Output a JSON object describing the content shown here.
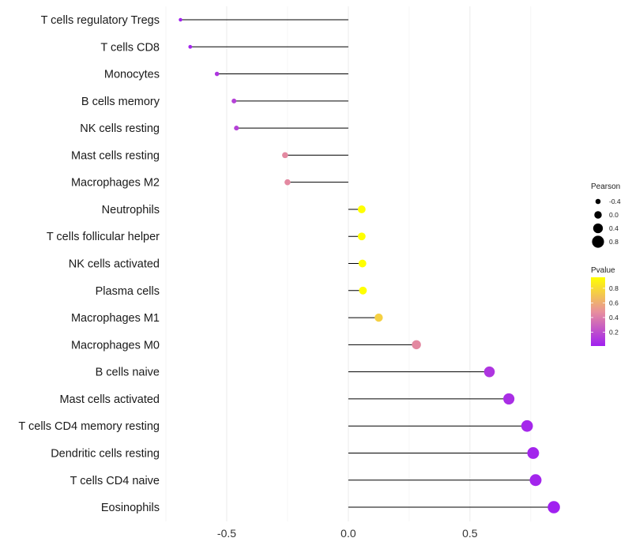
{
  "chart_data": {
    "type": "lollipop",
    "categories": [
      "T cells regulatory  Tregs",
      "T cells CD8",
      "Monocytes",
      "B cells memory",
      "NK cells resting",
      "Mast cells resting",
      "Macrophages M2",
      "Neutrophils",
      "T cells follicular helper",
      "NK cells activated",
      "Plasma cells",
      "Macrophages M1",
      "Macrophages M0",
      "B cells naive",
      "Mast cells activated",
      "T cells CD4 memory resting",
      "Dendritic cells resting",
      "T cells CD4 naive",
      "Eosinophils"
    ],
    "pearson": [
      -0.69,
      -0.65,
      -0.54,
      -0.47,
      -0.46,
      -0.26,
      -0.25,
      0.055,
      0.055,
      0.058,
      0.06,
      0.125,
      0.28,
      0.58,
      0.66,
      0.735,
      0.76,
      0.77,
      0.845
    ],
    "pvalue": [
      0.02,
      0.03,
      0.1,
      0.15,
      0.15,
      0.45,
      0.45,
      0.95,
      0.95,
      0.95,
      0.95,
      0.75,
      0.45,
      0.1,
      0.07,
      0.04,
      0.03,
      0.03,
      0.01
    ],
    "xlim": [
      -0.75,
      0.9
    ],
    "x_ticks": [
      -0.5,
      0.0,
      0.5
    ],
    "x_tick_labels": [
      "-0.5",
      "0.0",
      "0.5"
    ],
    "xlabel": "",
    "ylabel": "",
    "legend": {
      "size_title": "Pearson",
      "size_values": [
        -0.4,
        0.0,
        0.4,
        0.8
      ],
      "size_labels": [
        "-0.4",
        "0.0",
        "0.4",
        "0.8"
      ],
      "color_title": "Pvalue",
      "color_ticks": [
        0.8,
        0.6,
        0.4,
        0.2
      ],
      "color_labels": [
        "0.8",
        "0.6",
        "0.4",
        "0.2"
      ],
      "color_range": [
        0.01,
        0.95
      ],
      "low_color": "#A020F0",
      "mid_color": "#E8909C",
      "high_color": "#FFFF00",
      "position": "right"
    }
  }
}
